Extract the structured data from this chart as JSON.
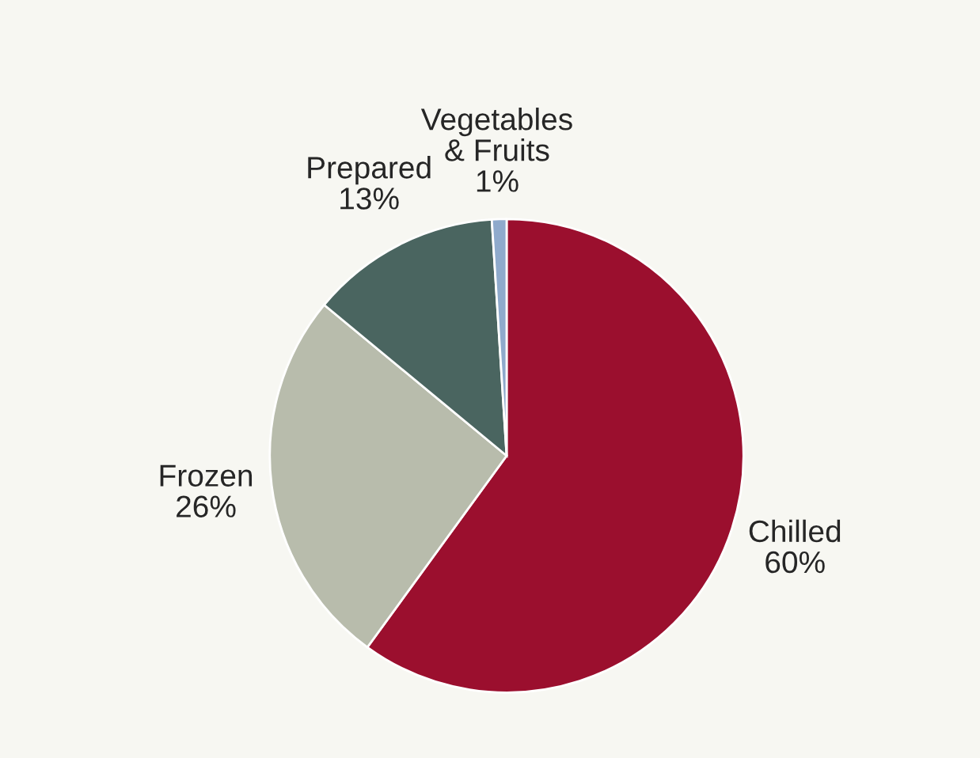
{
  "chart_data": {
    "type": "pie",
    "categories": [
      "Chilled",
      "Frozen",
      "Prepared",
      "Vegetables\n& Fruits"
    ],
    "values": [
      60,
      26,
      13,
      1
    ],
    "colors": [
      "#9b0f2e",
      "#b8bcac",
      "#4a6560",
      "#8faacc"
    ],
    "value_labels": [
      "60%",
      "26%",
      "13%",
      "1%"
    ],
    "legend": false
  }
}
